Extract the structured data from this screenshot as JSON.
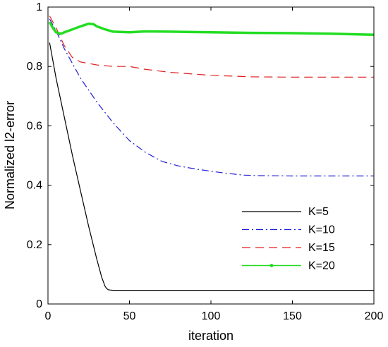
{
  "chart_data": {
    "type": "line",
    "title": "",
    "xlabel": "iteration",
    "ylabel": "Normalized l2-error",
    "xlim": [
      0,
      200
    ],
    "ylim": [
      0,
      1
    ],
    "xticks": [
      0,
      50,
      100,
      150,
      200
    ],
    "yticks": [
      0,
      0.2,
      0.4,
      0.6,
      0.8,
      1
    ],
    "xtick_labels": [
      "0",
      "50",
      "100",
      "150",
      "200"
    ],
    "ytick_labels": [
      "0",
      "0.2",
      "0.4",
      "0.6",
      "0.8",
      "1"
    ],
    "grid": false,
    "legend_position": "bottom-right",
    "series": [
      {
        "name": "K=5",
        "color": "#000000",
        "style": "solid",
        "x": [
          1,
          5,
          10,
          15,
          20,
          25,
          30,
          33,
          35,
          36,
          37,
          38,
          40,
          50,
          100,
          150,
          200
        ],
        "y": [
          0.88,
          0.76,
          0.63,
          0.5,
          0.38,
          0.26,
          0.15,
          0.09,
          0.06,
          0.052,
          0.048,
          0.047,
          0.046,
          0.046,
          0.046,
          0.046,
          0.046
        ]
      },
      {
        "name": "K=10",
        "color": "#1f1fd6",
        "style": "dashdot",
        "x": [
          1,
          5,
          10,
          20,
          30,
          40,
          50,
          60,
          70,
          80,
          90,
          100,
          110,
          120,
          130,
          150,
          175,
          200
        ],
        "y": [
          0.96,
          0.92,
          0.86,
          0.76,
          0.68,
          0.61,
          0.55,
          0.51,
          0.48,
          0.465,
          0.455,
          0.447,
          0.44,
          0.434,
          0.432,
          0.431,
          0.431,
          0.431
        ]
      },
      {
        "name": "K=15",
        "color": "#e02020",
        "style": "dashed",
        "x": [
          1,
          5,
          10,
          15,
          20,
          25,
          30,
          40,
          50,
          60,
          75,
          100,
          125,
          150,
          175,
          200
        ],
        "y": [
          0.97,
          0.93,
          0.87,
          0.83,
          0.815,
          0.81,
          0.805,
          0.8,
          0.8,
          0.79,
          0.78,
          0.77,
          0.765,
          0.764,
          0.764,
          0.764
        ]
      },
      {
        "name": "K=20",
        "color": "#22dd22",
        "style": "solid-marker",
        "x": [
          1,
          3,
          5,
          8,
          10,
          15,
          20,
          25,
          28,
          30,
          35,
          40,
          50,
          60,
          75,
          100,
          125,
          150,
          175,
          200
        ],
        "y": [
          0.95,
          0.93,
          0.915,
          0.91,
          0.915,
          0.925,
          0.935,
          0.944,
          0.942,
          0.935,
          0.925,
          0.917,
          0.915,
          0.918,
          0.917,
          0.915,
          0.913,
          0.912,
          0.91,
          0.907
        ]
      }
    ]
  }
}
